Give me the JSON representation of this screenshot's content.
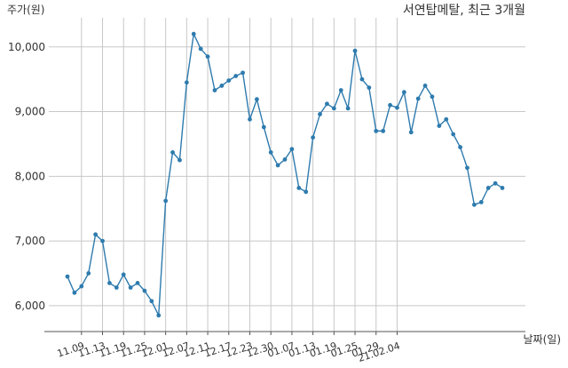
{
  "chart_data": {
    "type": "line",
    "title": "서연탑메탈, 최근 3개월",
    "ylabel": "주가(원)",
    "xlabel": "날짜(일)",
    "ylim": [
      5600,
      10450
    ],
    "yticks": [
      6000,
      7000,
      8000,
      9000,
      10000
    ],
    "ytick_labels": [
      "6,000",
      "7,000",
      "8,000",
      "9,000",
      "10,000"
    ],
    "xtick_labels": [
      "11.09",
      "11.13",
      "11.19",
      "11.25",
      "12.01",
      "12.07",
      "12.11",
      "12.17",
      "12.23",
      "12.30",
      "01.07",
      "01.13",
      "01.19",
      "01.25",
      "01.29",
      "21.02.04"
    ],
    "xtick_index": [
      2,
      5,
      8,
      11,
      14,
      17,
      20,
      23,
      26,
      29,
      32,
      35,
      38,
      41,
      44,
      47
    ],
    "grid": true,
    "line_color": "#2e7bae",
    "series": [
      {
        "values": [
          6450,
          6200,
          6300,
          6500,
          7100,
          7000,
          6350,
          6280,
          6480,
          6280,
          6350,
          6230,
          6070,
          5850,
          7620,
          8370,
          8250,
          9450,
          10200,
          9970,
          9850,
          9330,
          9400,
          9480,
          9550,
          9600,
          8880,
          9190,
          8760,
          8370,
          8170,
          8260,
          8420,
          7820,
          7760,
          8600,
          8960,
          9120,
          9050,
          9330,
          9050,
          9940,
          9500,
          9370,
          8700,
          8700,
          9100,
          9060,
          9300,
          8680,
          9200,
          9400,
          9230,
          8780,
          8880,
          8650,
          8450,
          8130,
          7560,
          7600,
          7820,
          7890,
          7820
        ]
      }
    ]
  }
}
